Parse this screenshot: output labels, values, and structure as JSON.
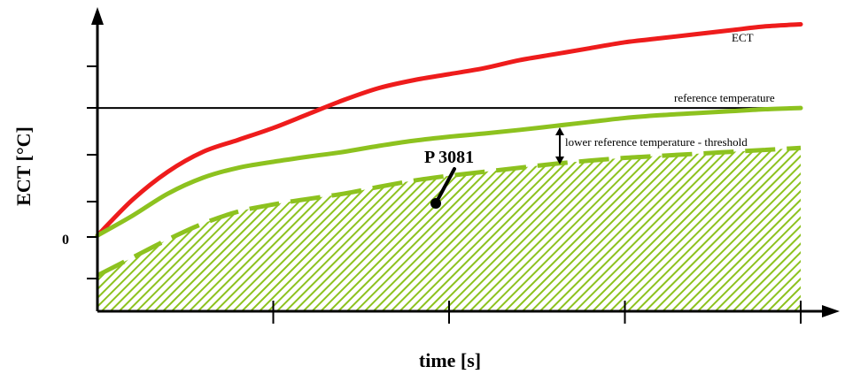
{
  "chart_data": {
    "type": "line",
    "xlabel": "time [s]",
    "ylabel": "ECT  [°C]",
    "y_zero_label": "0",
    "x_ticks_count": 4,
    "y_ticks_count": 6,
    "series": [
      {
        "name": "ECT",
        "color": "#ee1c1c",
        "style": "solid",
        "x": [
          0,
          0.05,
          0.1,
          0.15,
          0.2,
          0.25,
          0.3,
          0.35,
          0.4,
          0.45,
          0.5,
          0.55,
          0.6,
          0.65,
          0.7,
          0.75,
          0.8,
          0.85,
          0.9,
          0.95,
          1.0
        ],
        "y": [
          0,
          0.9,
          1.6,
          2.1,
          2.4,
          2.7,
          3.05,
          3.4,
          3.7,
          3.9,
          4.05,
          4.2,
          4.4,
          4.55,
          4.7,
          4.85,
          4.95,
          5.05,
          5.15,
          5.25,
          5.3
        ]
      },
      {
        "name": "reference temperature",
        "color": "#000000",
        "style": "solid-thin",
        "x": [
          0,
          1.0
        ],
        "y": [
          3.2,
          3.2
        ]
      },
      {
        "name": "",
        "color": "#8dc21f",
        "style": "solid",
        "x": [
          0,
          0.05,
          0.1,
          0.15,
          0.2,
          0.25,
          0.3,
          0.35,
          0.4,
          0.45,
          0.5,
          0.55,
          0.6,
          0.65,
          0.7,
          0.75,
          0.8,
          0.85,
          0.9,
          0.95,
          1.0
        ],
        "y": [
          0,
          0.5,
          1.05,
          1.45,
          1.7,
          1.85,
          1.98,
          2.1,
          2.25,
          2.38,
          2.48,
          2.56,
          2.65,
          2.75,
          2.85,
          2.95,
          3.02,
          3.07,
          3.12,
          3.17,
          3.2
        ]
      },
      {
        "name": "lower reference temperature - threshold",
        "color": "#8dc21f",
        "style": "dashed",
        "x": [
          0,
          0.05,
          0.1,
          0.15,
          0.2,
          0.25,
          0.3,
          0.35,
          0.4,
          0.45,
          0.5,
          0.55,
          0.6,
          0.65,
          0.7,
          0.75,
          0.8,
          0.85,
          0.9,
          0.95,
          1.0
        ],
        "y": [
          -1.0,
          -0.55,
          -0.1,
          0.3,
          0.6,
          0.78,
          0.92,
          1.05,
          1.22,
          1.38,
          1.5,
          1.6,
          1.7,
          1.8,
          1.88,
          1.95,
          2.0,
          2.05,
          2.1,
          2.15,
          2.2
        ]
      }
    ],
    "ylim": [
      -1.9,
      5.6
    ],
    "xlim": [
      0,
      1.0
    ],
    "annotations": {
      "code": "P 3081",
      "ect_label": "ECT",
      "ref_label": "reference temperature",
      "threshold_label": "lower reference temperature - threshold"
    },
    "hatch_color": "#8dc21f"
  }
}
